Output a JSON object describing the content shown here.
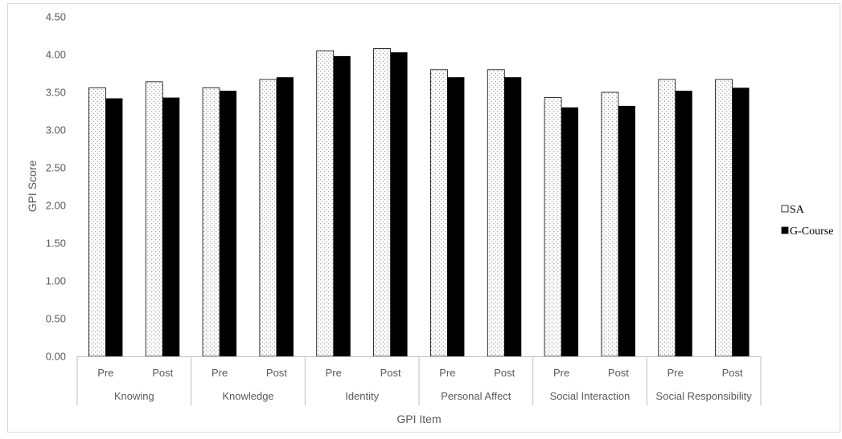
{
  "chart_data": {
    "type": "bar",
    "title": "",
    "xlabel": "GPI Item",
    "ylabel": "GPI Score",
    "ylim": [
      0,
      4.5
    ],
    "yticks": [
      "0.00",
      "0.50",
      "1.00",
      "1.50",
      "2.00",
      "2.50",
      "3.00",
      "3.50",
      "4.00",
      "4.50"
    ],
    "grid": false,
    "legend_position": "right",
    "groups": [
      {
        "name": "Knowing",
        "subcategories": [
          "Pre",
          "Post"
        ]
      },
      {
        "name": "Knowledge",
        "subcategories": [
          "Pre",
          "Post"
        ]
      },
      {
        "name": "Identity",
        "subcategories": [
          "Pre",
          "Post"
        ]
      },
      {
        "name": "Personal Affect",
        "subcategories": [
          "Pre",
          "Post"
        ]
      },
      {
        "name": "Social Interaction",
        "subcategories": [
          "Pre",
          "Post"
        ]
      },
      {
        "name": "Social Responsibility",
        "subcategories": [
          "Pre",
          "Post"
        ]
      }
    ],
    "series": [
      {
        "name": "SA",
        "fill": "dotted-white",
        "color": "#ffffff",
        "values": [
          3.56,
          3.64,
          3.56,
          3.67,
          4.05,
          4.08,
          3.8,
          3.8,
          3.43,
          3.5,
          3.67,
          3.67
        ]
      },
      {
        "name": "G-Course",
        "fill": "solid-black",
        "color": "#000000",
        "values": [
          3.42,
          3.43,
          3.52,
          3.7,
          3.98,
          4.03,
          3.7,
          3.7,
          3.3,
          3.32,
          3.52,
          3.56
        ]
      }
    ]
  }
}
